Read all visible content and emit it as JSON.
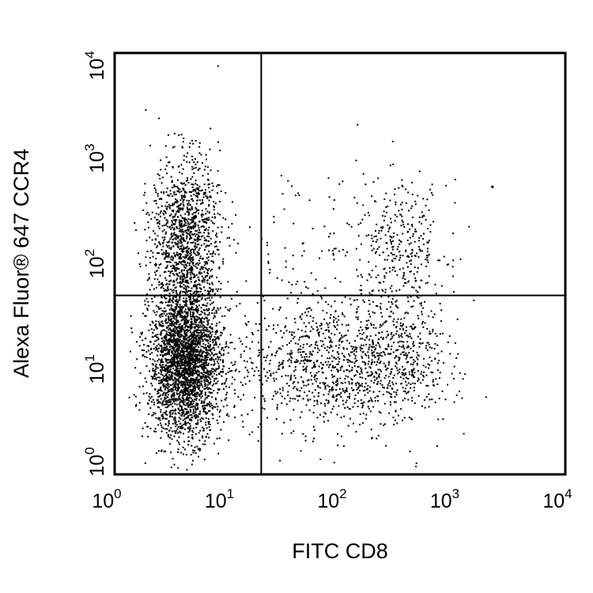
{
  "chart_data": {
    "type": "scatter",
    "title": "",
    "xlabel": "FITC CD8",
    "ylabel": "Alexa Fluor® 647 CCR4",
    "x_scale": "log",
    "y_scale": "log",
    "xlim": [
      1,
      10000
    ],
    "ylim": [
      1,
      10000
    ],
    "x_ticks": [
      {
        "base": "10",
        "exp": "0",
        "value": 1
      },
      {
        "base": "10",
        "exp": "1",
        "value": 10
      },
      {
        "base": "10",
        "exp": "2",
        "value": 100
      },
      {
        "base": "10",
        "exp": "3",
        "value": 1000
      },
      {
        "base": "10",
        "exp": "4",
        "value": 10000
      }
    ],
    "y_ticks": [
      {
        "base": "10",
        "exp": "0",
        "value": 1
      },
      {
        "base": "10",
        "exp": "1",
        "value": 10
      },
      {
        "base": "10",
        "exp": "2",
        "value": 100
      },
      {
        "base": "10",
        "exp": "3",
        "value": 1000
      },
      {
        "base": "10",
        "exp": "4",
        "value": 10000
      }
    ],
    "quadrant_gates": {
      "x": 20,
      "y": 50
    },
    "populations": [
      {
        "x_center": 4.2,
        "y_center": 12,
        "x_spread_decades": 0.16,
        "y_spread_decades": 0.36,
        "share": 0.5
      },
      {
        "x_center": 4.2,
        "y_center": 180,
        "x_spread_decades": 0.15,
        "y_spread_decades": 0.38,
        "share": 0.2
      },
      {
        "x_center": 80,
        "y_center": 11,
        "x_spread_decades": 0.42,
        "y_spread_decades": 0.3,
        "share": 0.17
      },
      {
        "x_center": 350,
        "y_center": 15,
        "x_spread_decades": 0.2,
        "y_spread_decades": 0.35,
        "share": 0.06
      },
      {
        "x_center": 350,
        "y_center": 150,
        "x_spread_decades": 0.2,
        "y_spread_decades": 0.3,
        "share": 0.05
      },
      {
        "x_center": 60,
        "y_center": 120,
        "x_spread_decades": 0.45,
        "y_spread_decades": 0.45,
        "share": 0.02
      }
    ],
    "outliers": [
      {
        "x": 2200,
        "y": 550
      }
    ],
    "point_color": "#000000",
    "grid": false,
    "legend": "none"
  }
}
